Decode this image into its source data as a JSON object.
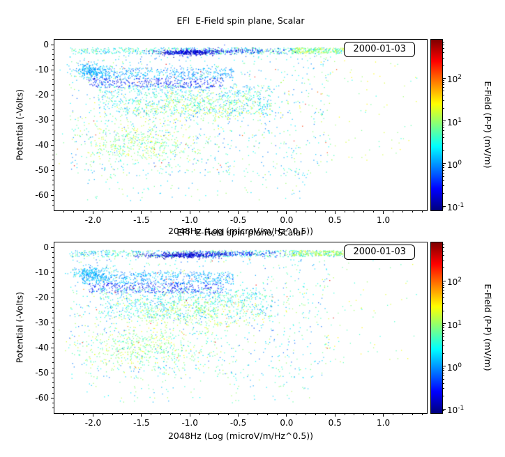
{
  "figure": {
    "background": "#ffffff",
    "text_color": "#000000"
  },
  "chart_data": [
    {
      "type": "scatter",
      "title": "EFI  E-Field spin plane, Scalar",
      "xlabel": "2048Hz (Log (microV/m/Hz^0.5))",
      "ylabel": "Potential (-Volts)",
      "date_label": "2000-01-03",
      "xlim": [
        -2.4,
        1.45
      ],
      "ylim": [
        -66,
        2
      ],
      "xticks": [
        -2.0,
        -1.5,
        -1.0,
        -0.5,
        0.0,
        0.5,
        1.0
      ],
      "yticks": [
        0,
        -10,
        -20,
        -30,
        -40,
        -50,
        -60
      ],
      "grid": false,
      "legend": false,
      "colorbar": {
        "label": "E-Field (P-P) (mV/m)",
        "scale": "log",
        "vmin": 0.08,
        "vmax": 800,
        "ticks": [
          100,
          10,
          1,
          0.1
        ],
        "colormap": "jet",
        "position": "right"
      },
      "seed": 101,
      "clusters": [
        {
          "shape": "rect",
          "x0": -2.25,
          "x1": 0.78,
          "y0": -3.6,
          "y1": -1.0,
          "n": 650,
          "v0": 0.7,
          "v1": 12
        },
        {
          "shape": "rect",
          "x0": 0.05,
          "x1": 0.78,
          "y0": -3.2,
          "y1": -1.1,
          "n": 260,
          "v0": 4,
          "v1": 28
        },
        {
          "shape": "gauss",
          "cx": -1.03,
          "cy": -2.9,
          "sx": 0.16,
          "sy": 0.55,
          "n": 380,
          "v0": 0.09,
          "v1": 0.32
        },
        {
          "shape": "gauss",
          "cx": -0.5,
          "cy": -2.3,
          "sx": 0.22,
          "sy": 0.5,
          "n": 130,
          "v0": 0.12,
          "v1": 0.5
        },
        {
          "shape": "gauss",
          "cx": -2.02,
          "cy": -10.0,
          "sx": 0.1,
          "sy": 1.5,
          "n": 240,
          "v0": 0.7,
          "v1": 2.2
        },
        {
          "shape": "rect",
          "x0": -2.12,
          "x1": -0.55,
          "y0": -13.5,
          "y1": -9.0,
          "n": 430,
          "v0": 0.5,
          "v1": 2.4
        },
        {
          "shape": "rect",
          "x0": -2.05,
          "x1": -0.65,
          "y0": -17.0,
          "y1": -13.2,
          "n": 330,
          "v0": 0.14,
          "v1": 0.7
        },
        {
          "shape": "rect",
          "x0": -1.95,
          "x1": -0.15,
          "y0": -28.0,
          "y1": -16.0,
          "n": 650,
          "v0": 0.8,
          "v1": 7
        },
        {
          "shape": "gauss",
          "cx": -0.92,
          "cy": -24.5,
          "sx": 0.4,
          "sy": 3.2,
          "n": 420,
          "v0": 4,
          "v1": 30
        },
        {
          "shape": "gauss",
          "cx": -1.55,
          "cy": -39.0,
          "sx": 0.33,
          "sy": 4.2,
          "n": 480,
          "v0": 3,
          "v1": 26
        },
        {
          "shape": "rect",
          "x0": -2.25,
          "x1": 0.45,
          "y0": -52.0,
          "y1": -4.0,
          "n": 850,
          "v0": 0.5,
          "v1": 14
        },
        {
          "shape": "rect",
          "x0": 0.35,
          "x1": 1.35,
          "y0": -46.0,
          "y1": -1.5,
          "n": 80,
          "v0": 3,
          "v1": 30
        },
        {
          "shape": "rect",
          "x0": -2.1,
          "x1": 0.25,
          "y0": -62.0,
          "y1": -48.0,
          "n": 110,
          "v0": 1,
          "v1": 14
        },
        {
          "shape": "rect",
          "x0": -2.2,
          "x1": 0.55,
          "y0": -50.0,
          "y1": -2.0,
          "n": 35,
          "v0": 60,
          "v1": 400
        }
      ]
    },
    {
      "type": "scatter",
      "title": "EFI  E-Field spin plane, Scalar",
      "xlabel": "2048Hz (Log (microV/m/Hz^0.5))",
      "ylabel": "Potential (-Volts)",
      "date_label": "2000-01-03",
      "xlim": [
        -2.4,
        1.45
      ],
      "ylim": [
        -66,
        2
      ],
      "xticks": [
        -2.0,
        -1.5,
        -1.0,
        -0.5,
        0.0,
        0.5,
        1.0
      ],
      "yticks": [
        0,
        -10,
        -20,
        -30,
        -40,
        -50,
        -60
      ],
      "grid": false,
      "legend": false,
      "colorbar": {
        "label": "E-Field (P-P) (mV/m)",
        "scale": "log",
        "vmin": 0.08,
        "vmax": 800,
        "ticks": [
          100,
          10,
          1,
          0.1
        ],
        "colormap": "jet",
        "position": "right"
      },
      "seed": 777,
      "clusters": [
        {
          "shape": "rect",
          "x0": -2.25,
          "x1": 0.78,
          "y0": -3.6,
          "y1": -1.0,
          "n": 650,
          "v0": 0.7,
          "v1": 12
        },
        {
          "shape": "rect",
          "x0": 0.05,
          "x1": 0.78,
          "y0": -3.2,
          "y1": -1.1,
          "n": 260,
          "v0": 4,
          "v1": 28
        },
        {
          "shape": "gauss",
          "cx": -1.05,
          "cy": -2.9,
          "sx": 0.2,
          "sy": 0.6,
          "n": 400,
          "v0": 0.09,
          "v1": 0.32
        },
        {
          "shape": "gauss",
          "cx": -0.5,
          "cy": -2.3,
          "sx": 0.22,
          "sy": 0.5,
          "n": 130,
          "v0": 0.12,
          "v1": 0.5
        },
        {
          "shape": "gauss",
          "cx": -2.02,
          "cy": -10.5,
          "sx": 0.1,
          "sy": 1.6,
          "n": 260,
          "v0": 0.7,
          "v1": 2.2
        },
        {
          "shape": "rect",
          "x0": -2.12,
          "x1": -0.55,
          "y0": -14.5,
          "y1": -9.5,
          "n": 500,
          "v0": 0.5,
          "v1": 2.4
        },
        {
          "shape": "rect",
          "x0": -2.05,
          "x1": -0.65,
          "y0": -18.0,
          "y1": -14.0,
          "n": 330,
          "v0": 0.14,
          "v1": 0.7
        },
        {
          "shape": "rect",
          "x0": -1.95,
          "x1": -0.15,
          "y0": -28.0,
          "y1": -16.0,
          "n": 650,
          "v0": 0.8,
          "v1": 7
        },
        {
          "shape": "gauss",
          "cx": -0.95,
          "cy": -25.5,
          "sx": 0.4,
          "sy": 3.2,
          "n": 420,
          "v0": 4,
          "v1": 30
        },
        {
          "shape": "gauss",
          "cx": -1.5,
          "cy": -40.0,
          "sx": 0.35,
          "sy": 4.2,
          "n": 480,
          "v0": 3,
          "v1": 26
        },
        {
          "shape": "rect",
          "x0": -2.25,
          "x1": 0.45,
          "y0": -52.0,
          "y1": -4.0,
          "n": 850,
          "v0": 0.5,
          "v1": 14
        },
        {
          "shape": "rect",
          "x0": 0.35,
          "x1": 1.35,
          "y0": -46.0,
          "y1": -1.5,
          "n": 80,
          "v0": 3,
          "v1": 30
        },
        {
          "shape": "rect",
          "x0": -2.1,
          "x1": 0.25,
          "y0": -62.0,
          "y1": -48.0,
          "n": 110,
          "v0": 1,
          "v1": 14
        },
        {
          "shape": "rect",
          "x0": -2.2,
          "x1": 0.55,
          "y0": -50.0,
          "y1": -2.0,
          "n": 35,
          "v0": 60,
          "v1": 400
        }
      ]
    }
  ]
}
